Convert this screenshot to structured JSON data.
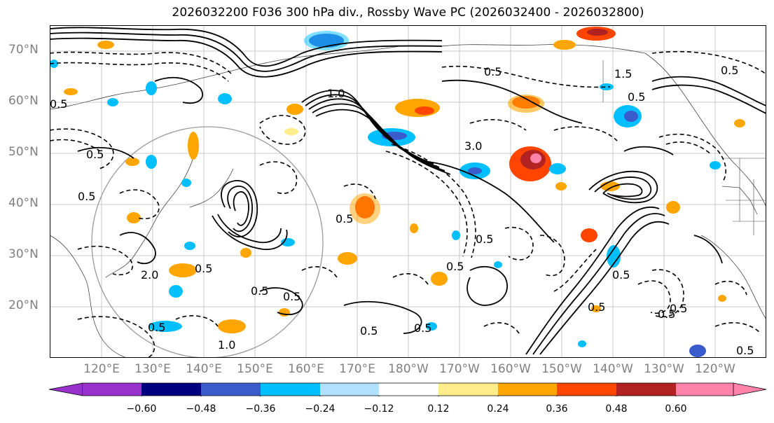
{
  "title": "2026032200 F036 300 hPa div., Rossby Wave PC (2026032400 - 2026032800)",
  "lat_labels": [
    "70°N",
    "60°N",
    "50°N",
    "40°N",
    "30°N",
    "20°N"
  ],
  "lon_labels": [
    "120°E",
    "130°E",
    "140°E",
    "150°E",
    "160°E",
    "170°E",
    "180°W",
    "170°W",
    "160°W",
    "150°W",
    "140°W",
    "130°W",
    "120°W"
  ],
  "colorbar": {
    "ticks": [
      "−0.60",
      "−0.48",
      "−0.36",
      "−0.24",
      "−0.12",
      "0.12",
      "0.24",
      "0.36",
      "0.48",
      "0.60"
    ],
    "colors": [
      "#9932cc",
      "#000080",
      "#3a5bcc",
      "#00bfff",
      "#b0e2ff",
      "#ffffff",
      "#ffec8b",
      "#ffa500",
      "#ff4500",
      "#b22222",
      "#ff82ab"
    ]
  },
  "contour_labels": [
    "0.5",
    "1.0",
    "1.5",
    "2.0",
    "3.0"
  ]
}
